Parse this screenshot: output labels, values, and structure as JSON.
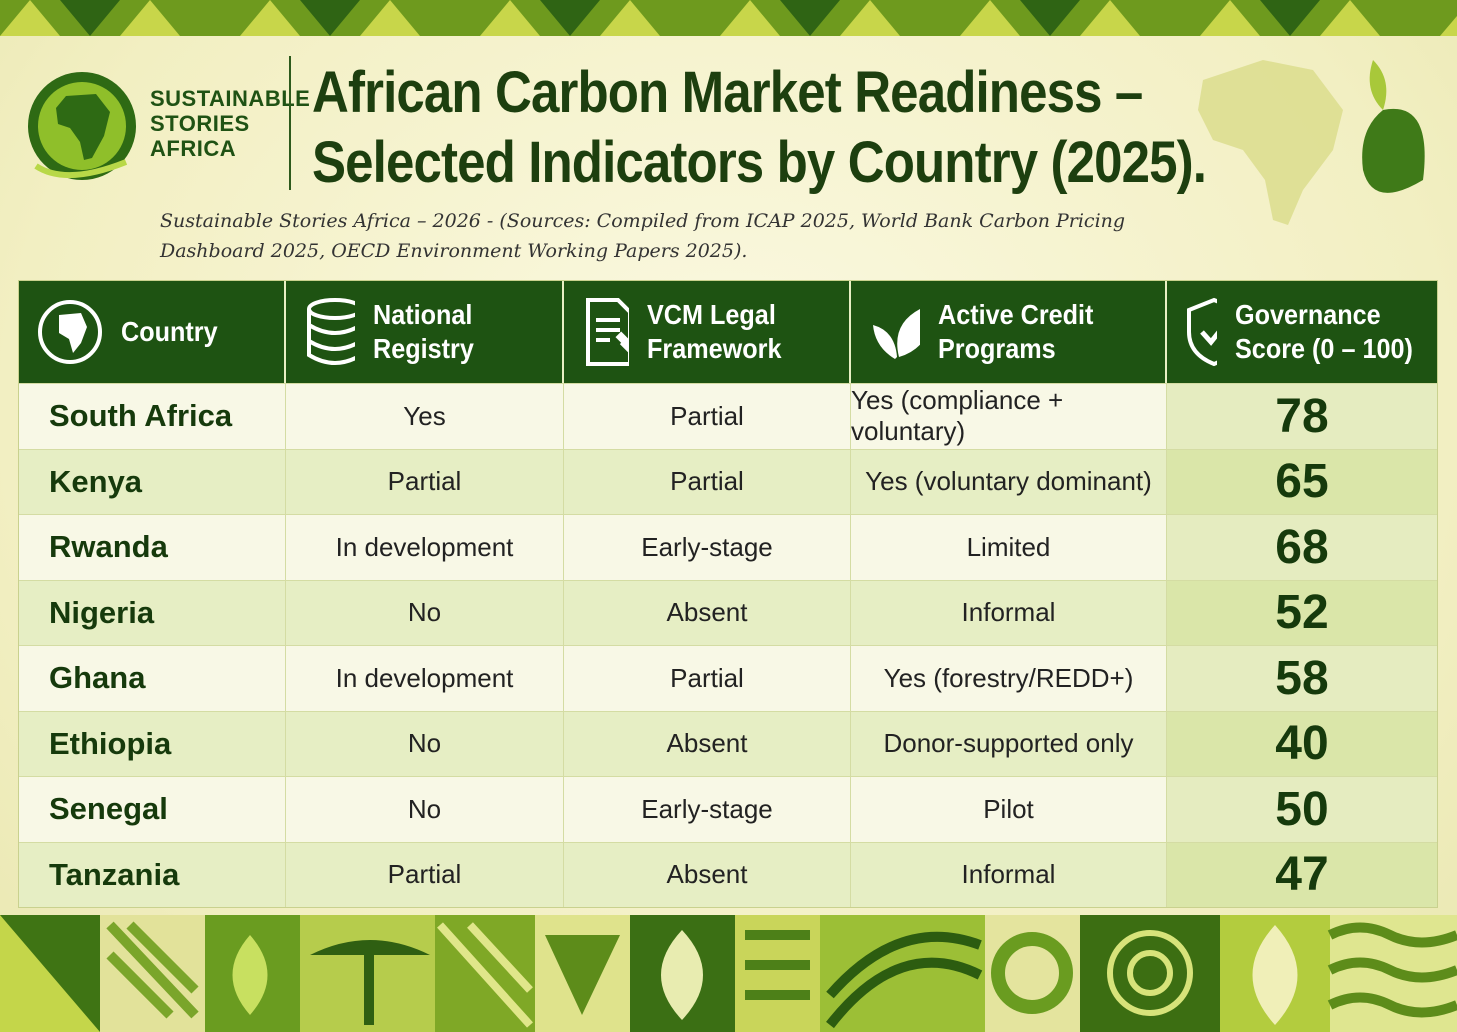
{
  "header": {
    "logo_lines": [
      "SUSTAINABLE",
      "STORIES",
      "AFRICA"
    ],
    "title_lines": [
      "African Carbon Market Readiness –",
      "Selected Indicators by Country (2025)."
    ],
    "subtitle": "Sustainable Stories Africa – 2026 - (Sources: Compiled from ICAP 2025, World Bank Carbon Pricing Dashboard 2025, OECD Environment Working Papers 2025)."
  },
  "table": {
    "columns": [
      "Country",
      "National Registry",
      "VCM Legal Framework",
      "Active Credit Programs",
      "Governance Score (0 – 100)"
    ],
    "rows": [
      [
        "South Africa",
        "Yes",
        "Partial",
        "Yes (compliance + voluntary)",
        78
      ],
      [
        "Kenya",
        "Partial",
        "Partial",
        "Yes (voluntary dominant)",
        65
      ],
      [
        "Rwanda",
        "In development",
        "Early-stage",
        "Limited",
        68
      ],
      [
        "Nigeria",
        "No",
        "Absent",
        "Informal",
        52
      ],
      [
        "Ghana",
        "In development",
        "Partial",
        "Yes (forestry/REDD+)",
        58
      ],
      [
        "Ethiopia",
        "No",
        "Absent",
        "Donor-supported only",
        40
      ],
      [
        "Senegal",
        "No",
        "Early-stage",
        "Pilot",
        50
      ],
      [
        "Tanzania",
        "Partial",
        "Absent",
        "Informal",
        47
      ]
    ]
  }
}
